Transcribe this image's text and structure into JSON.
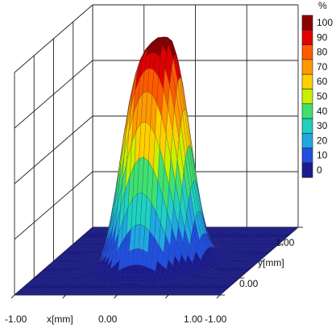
{
  "chart_data": {
    "type": "surface-3d",
    "xlabel": "x[mm]",
    "ylabel": "y[mm]",
    "x_ticks": [
      "-1.00",
      "0.00",
      "1.00"
    ],
    "y_ticks": [
      "-1.00",
      "0.00",
      "1.00"
    ],
    "xlim": [
      -1.0,
      1.0
    ],
    "ylim": [
      -1.0,
      1.0
    ],
    "zlim": [
      0,
      100
    ],
    "z_unit": "%",
    "grid": true,
    "surface": {
      "shape": "flat-top Gaussian beam profile",
      "peak_percent": 100,
      "peak_center_x_mm": 0.0,
      "peak_center_y_mm": 0.0,
      "half_width_x_mm": 0.35,
      "half_width_y_mm": 0.35
    },
    "colorbar": {
      "unit": "%",
      "placement": "top-right",
      "levels": [
        100,
        90,
        80,
        70,
        60,
        50,
        40,
        30,
        20,
        10,
        0
      ],
      "level_labels": [
        "100",
        "90",
        "80",
        "70",
        "60",
        "50",
        "40",
        "30",
        "20",
        "10",
        "0"
      ],
      "colors": [
        "#8b0000",
        "#e00000",
        "#ff5a00",
        "#ff9a00",
        "#ffd000",
        "#c8f000",
        "#40e070",
        "#20d0c0",
        "#20a8e0",
        "#2050e0",
        "#1a1a90"
      ]
    }
  }
}
